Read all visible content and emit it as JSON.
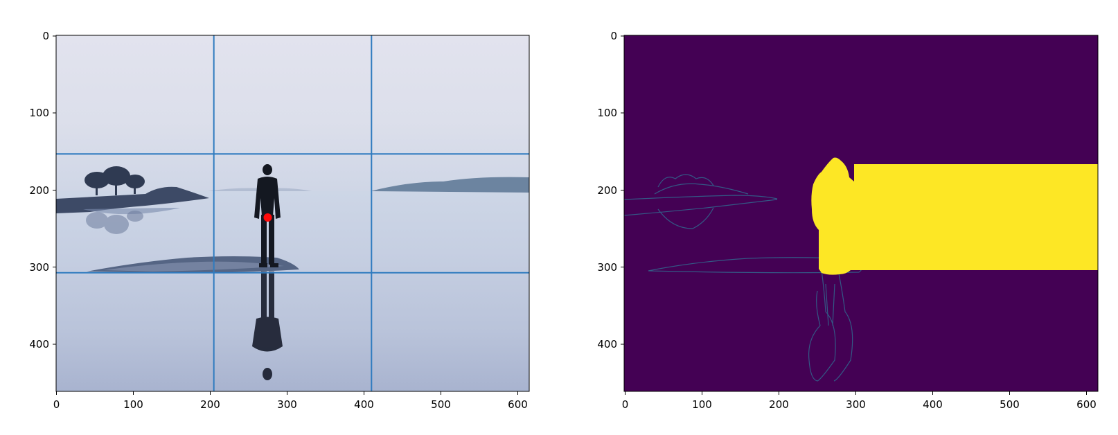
{
  "figure": {
    "panels": [
      {
        "name": "photo-panel",
        "content": "grayscale-blue lake photo of a man standing on a sandbar with reflection, rule-of-thirds grid overlay",
        "xlim": [
          0,
          615
        ],
        "ylim": [
          461,
          0
        ],
        "x_ticks": [
          "0",
          "100",
          "200",
          "300",
          "400",
          "500",
          "600"
        ],
        "y_ticks": [
          "0",
          "100",
          "200",
          "300",
          "400"
        ],
        "grid_lines": {
          "x": [
            205,
            410
          ],
          "y": [
            153.7,
            307.3
          ],
          "color": "#2f7bbf"
        },
        "marker": {
          "x": 275,
          "y": 236,
          "color": "#ff0000"
        }
      },
      {
        "name": "saliency-panel",
        "content": "viridis edge map with a yellow mask region",
        "xlim": [
          0,
          615
        ],
        "ylim": [
          461,
          0
        ],
        "x_ticks": [
          "0",
          "100",
          "200",
          "300",
          "400",
          "500",
          "600"
        ],
        "y_ticks": [
          "0",
          "100",
          "200",
          "300",
          "400"
        ],
        "colors": {
          "background": "#440154",
          "edges": "#31688e",
          "mask": "#fde725"
        }
      }
    ]
  }
}
